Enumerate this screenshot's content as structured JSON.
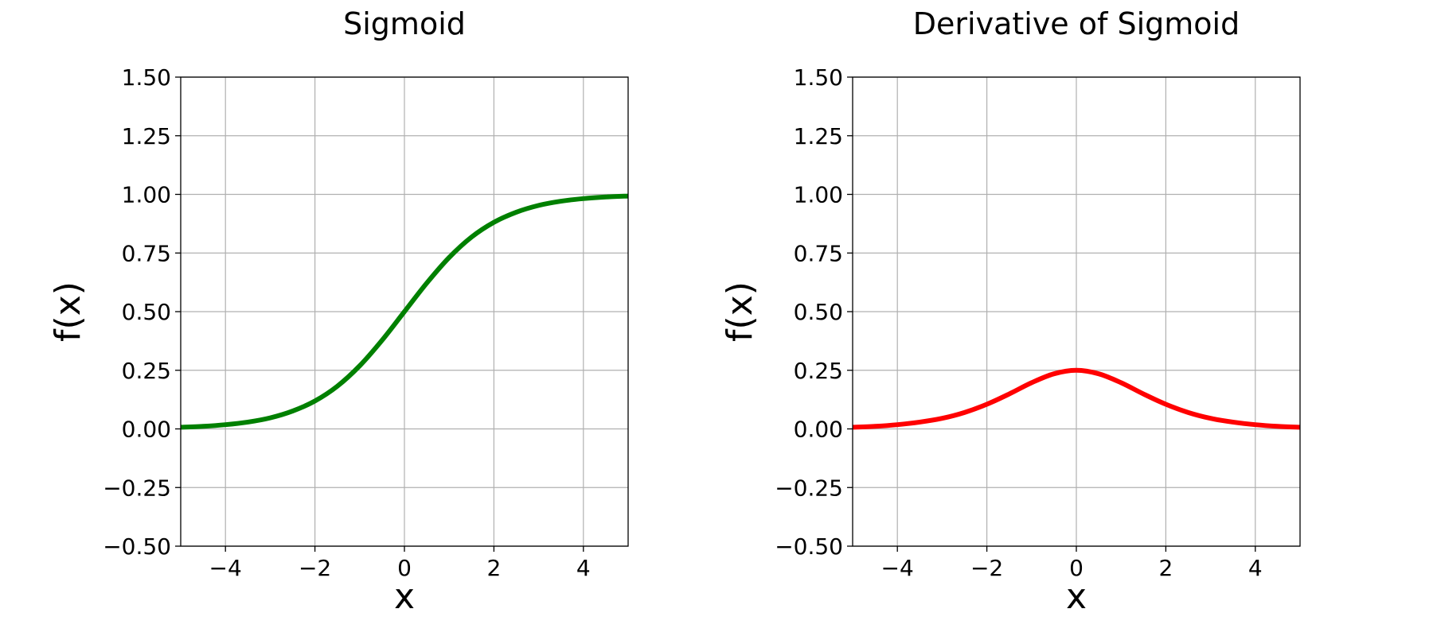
{
  "chart_data": [
    {
      "type": "line",
      "title": "Sigmoid",
      "xlabel": "x",
      "ylabel": "f(x)",
      "xlim": [
        -5,
        5
      ],
      "ylim": [
        -0.5,
        1.5
      ],
      "xticks": [
        -4,
        -2,
        0,
        2,
        4
      ],
      "xtick_labels": [
        "−4",
        "−2",
        "0",
        "2",
        "4"
      ],
      "yticks": [
        -0.5,
        -0.25,
        0,
        0.25,
        0.5,
        0.75,
        1,
        1.25,
        1.5
      ],
      "ytick_labels": [
        "−0.50",
        "−0.25",
        "0.00",
        "0.25",
        "0.50",
        "0.75",
        "1.00",
        "1.25",
        "1.50"
      ],
      "grid": true,
      "series": [
        {
          "color": "#008000",
          "x": [
            -5,
            -4.5,
            -4,
            -3.5,
            -3,
            -2.5,
            -2,
            -1.5,
            -1,
            -0.5,
            0,
            0.5,
            1,
            1.5,
            2,
            2.5,
            3,
            3.5,
            4,
            4.5,
            5
          ],
          "y": [
            0.007,
            0.011,
            0.018,
            0.029,
            0.047,
            0.076,
            0.119,
            0.182,
            0.269,
            0.378,
            0.5,
            0.622,
            0.731,
            0.818,
            0.881,
            0.924,
            0.953,
            0.971,
            0.982,
            0.989,
            0.993
          ]
        }
      ]
    },
    {
      "type": "line",
      "title": "Derivative of Sigmoid",
      "xlabel": "x",
      "ylabel": "f(x)",
      "xlim": [
        -5,
        5
      ],
      "ylim": [
        -0.5,
        1.5
      ],
      "xticks": [
        -4,
        -2,
        0,
        2,
        4
      ],
      "xtick_labels": [
        "−4",
        "−2",
        "0",
        "2",
        "4"
      ],
      "yticks": [
        -0.5,
        -0.25,
        0,
        0.25,
        0.5,
        0.75,
        1,
        1.25,
        1.5
      ],
      "ytick_labels": [
        "−0.50",
        "−0.25",
        "0.00",
        "0.25",
        "0.50",
        "0.75",
        "1.00",
        "1.25",
        "1.50"
      ],
      "grid": true,
      "series": [
        {
          "color": "#ff0000",
          "x": [
            -5,
            -4.5,
            -4,
            -3.5,
            -3,
            -2.5,
            -2,
            -1.5,
            -1,
            -0.5,
            0,
            0.5,
            1,
            1.5,
            2,
            2.5,
            3,
            3.5,
            4,
            4.5,
            5
          ],
          "y": [
            0.007,
            0.011,
            0.018,
            0.029,
            0.045,
            0.07,
            0.105,
            0.149,
            0.197,
            0.235,
            0.25,
            0.235,
            0.197,
            0.149,
            0.105,
            0.07,
            0.045,
            0.029,
            0.018,
            0.011,
            0.007
          ]
        }
      ]
    }
  ]
}
